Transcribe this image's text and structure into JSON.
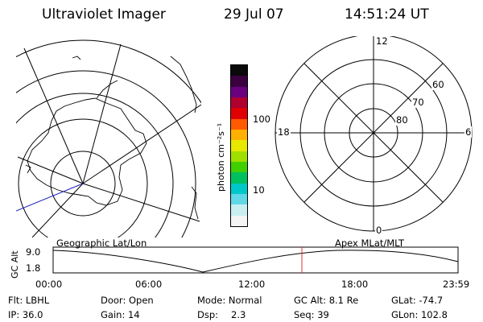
{
  "header": {
    "title": "Ultraviolet Imager",
    "date": "29 Jul 07",
    "time": "14:51:24 UT"
  },
  "colorbar": {
    "unit_label": "photon cm⁻²s⁻¹",
    "ticks": [
      "100",
      "10"
    ],
    "colors": [
      "#0a0a0a",
      "#3a0040",
      "#6a0080",
      "#b00030",
      "#e00000",
      "#ff5a00",
      "#ffb000",
      "#e8e800",
      "#a0e000",
      "#40d000",
      "#00c060",
      "#00c8c8",
      "#60d8e8",
      "#c8eef2",
      "#f4f4f4"
    ]
  },
  "polar_plot": {
    "labels": [
      "12",
      "60",
      "70",
      "80",
      "18",
      "6",
      "0"
    ]
  },
  "timeline": {
    "left_label": "Geographic Lat/Lon",
    "right_label": "Apex MLat/MLT",
    "y_axis_label": "GC Alt",
    "y_ticks": [
      "9.0",
      "1.8"
    ],
    "x_ticks": [
      "00:00",
      "06:00",
      "12:00",
      "18:00",
      "23:59"
    ],
    "marker_color": "#e03030"
  },
  "info": {
    "filter": "Flt: LBHL",
    "door": "Door: Open",
    "mode": "Mode: Normal",
    "gc_alt": "GC Alt: 8.1 Re",
    "glat": "GLat: -74.7",
    "ip": "IP: 36.0",
    "gain": "Gain: 14",
    "dsp_label": "Dsp:",
    "dsp_value": "2.3",
    "seq": "Seq: 39",
    "glon": "GLon: 102.8"
  }
}
